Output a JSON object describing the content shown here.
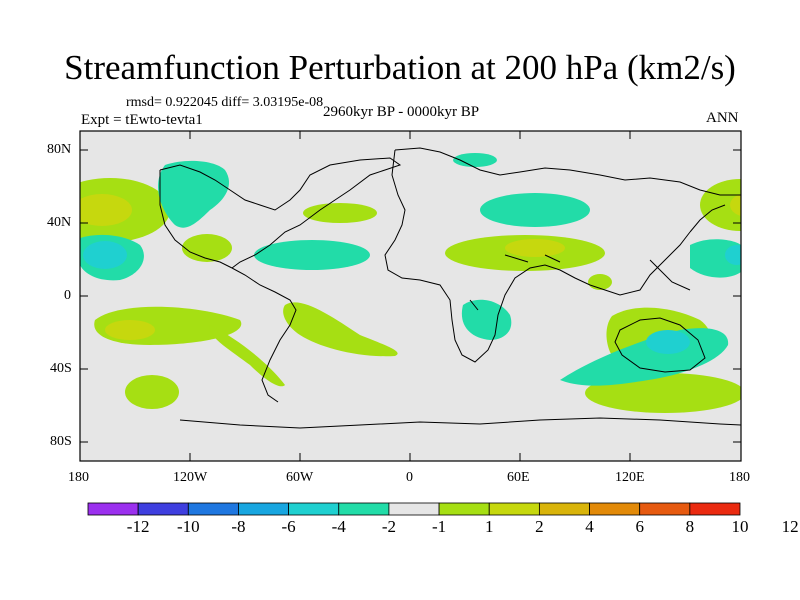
{
  "title": "Streamfunction Perturbation at 200 hPa (km2/s)",
  "stats": "rmsd= 0.922045 diff= 3.03195e-08",
  "period": "2960kyr BP - 0000kyr BP",
  "experiment": "Expt = tEwto-tevta1",
  "season": "ANN",
  "lat_labels": [
    "80N",
    "40N",
    "0",
    "40S",
    "80S"
  ],
  "lon_labels": [
    "180",
    "120W",
    "60W",
    "0",
    "60E",
    "120E",
    "180"
  ],
  "colorbar": {
    "labels": [
      "-12",
      "-10",
      "-8",
      "-6",
      "-4",
      "-2",
      "-1",
      "1",
      "2",
      "4",
      "6",
      "8",
      "10",
      "12"
    ],
    "colors": [
      "#9b30ee",
      "#3f3fdf",
      "#1f77e0",
      "#18a6e0",
      "#1fd0d0",
      "#22dca8",
      "#e6e6e6",
      "#a6df13",
      "#c6d80e",
      "#d9b40a",
      "#e28a09",
      "#e65a10",
      "#ea2a10"
    ]
  }
}
